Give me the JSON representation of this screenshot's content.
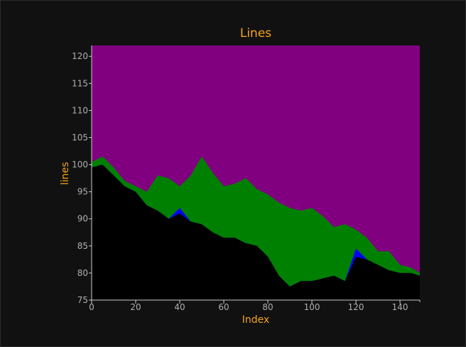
{
  "chart_data": {
    "type": "area",
    "title": "Lines",
    "xlabel": "Index",
    "ylabel": "lines",
    "xlim": [
      0,
      149
    ],
    "ylim": [
      75,
      122
    ],
    "x_ticks": [
      0,
      20,
      40,
      60,
      80,
      100,
      120,
      140
    ],
    "y_ticks": [
      75,
      80,
      85,
      90,
      95,
      100,
      105,
      110,
      115,
      120
    ],
    "grid": true,
    "background": "#111111",
    "x_key": [
      0,
      5,
      10,
      15,
      20,
      25,
      30,
      35,
      40,
      45,
      50,
      55,
      60,
      65,
      70,
      75,
      80,
      85,
      90,
      95,
      100,
      105,
      110,
      115,
      120,
      125,
      130,
      135,
      140,
      145,
      149
    ],
    "series": [
      {
        "color": "#000000",
        "values": [
          99.5,
          100.0,
          98.0,
          96.0,
          95.0,
          92.5,
          91.5,
          90.0,
          91.0,
          89.5,
          89.0,
          87.5,
          86.5,
          86.5,
          85.5,
          85.0,
          83.0,
          79.5,
          77.5,
          78.5,
          78.5,
          79.0,
          79.5,
          78.5,
          83.0,
          82.5,
          81.5,
          80.5,
          80.0,
          80.0,
          79.5
        ]
      },
      {
        "color": "#0000ff",
        "values": [
          99.5,
          100.0,
          98.0,
          96.0,
          95.0,
          92.5,
          91.5,
          90.0,
          92.0,
          89.5,
          89.0,
          87.5,
          86.5,
          86.5,
          85.5,
          85.0,
          83.0,
          79.5,
          77.5,
          78.5,
          78.5,
          79.0,
          79.5,
          78.5,
          84.5,
          82.5,
          81.5,
          80.5,
          80.0,
          80.0,
          79.5
        ]
      },
      {
        "color": "#008000",
        "values": [
          100.5,
          101.5,
          99.5,
          97.0,
          96.0,
          95.0,
          98.0,
          97.5,
          96.0,
          98.0,
          101.5,
          98.5,
          96.0,
          96.5,
          97.5,
          95.5,
          94.5,
          93.0,
          92.0,
          91.5,
          92.0,
          90.5,
          88.5,
          89.0,
          88.0,
          86.5,
          84.0,
          84.0,
          81.5,
          81.0,
          80.0
        ]
      },
      {
        "color": "#800080",
        "values": [
          122,
          122,
          122,
          122,
          122,
          122,
          122,
          122,
          122,
          122,
          122,
          122,
          122,
          122,
          122,
          122,
          122,
          122,
          122,
          122,
          122,
          122,
          122,
          122,
          122,
          122,
          122,
          122,
          122,
          122,
          122
        ]
      }
    ]
  }
}
